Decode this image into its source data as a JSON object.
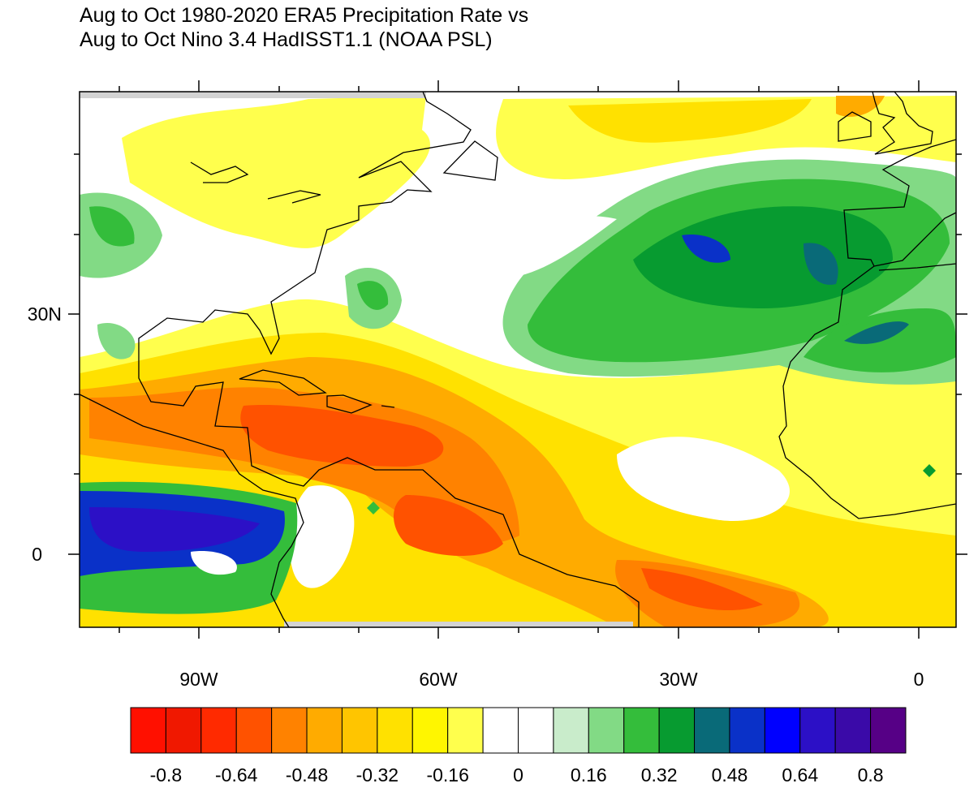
{
  "title": {
    "line1": "Aug to Oct 1980-2020 ERA5 Precipitation Rate vs",
    "line2": "Aug to Oct Nino 3.4 HadISST1.1 (NOAA PSL)"
  },
  "map": {
    "type": "filled contour correlation map",
    "lon_range": [
      -105,
      5
    ],
    "lat_range": [
      -9,
      58
    ],
    "x_tick_labels": [
      "90W",
      "60W",
      "30W",
      "0"
    ],
    "y_tick_labels": [
      "30N",
      "0"
    ],
    "missing_data_color": "#d3d3d3"
  },
  "colorbar": {
    "levels_min": -0.8,
    "levels_max": 0.8,
    "interval": 0.08,
    "labels": [
      "-0.8",
      "-0.64",
      "-0.48",
      "-0.32",
      "-0.16",
      "0",
      "0.16",
      "0.32",
      "0.48",
      "0.64",
      "0.8"
    ],
    "colors": [
      "#ff1000",
      "#f01800",
      "#ff2a00",
      "#ff5200",
      "#ff8200",
      "#ffab00",
      "#ffc500",
      "#ffe100",
      "#fff600",
      "#ffff4d",
      "#ffffff",
      "#ffffff",
      "#c9eccb",
      "#82da85",
      "#34bd3b",
      "#079b30",
      "#096a78",
      "#0a31c8",
      "#0000ff",
      "#2c10c6",
      "#3a0aa8",
      "#560086"
    ]
  }
}
